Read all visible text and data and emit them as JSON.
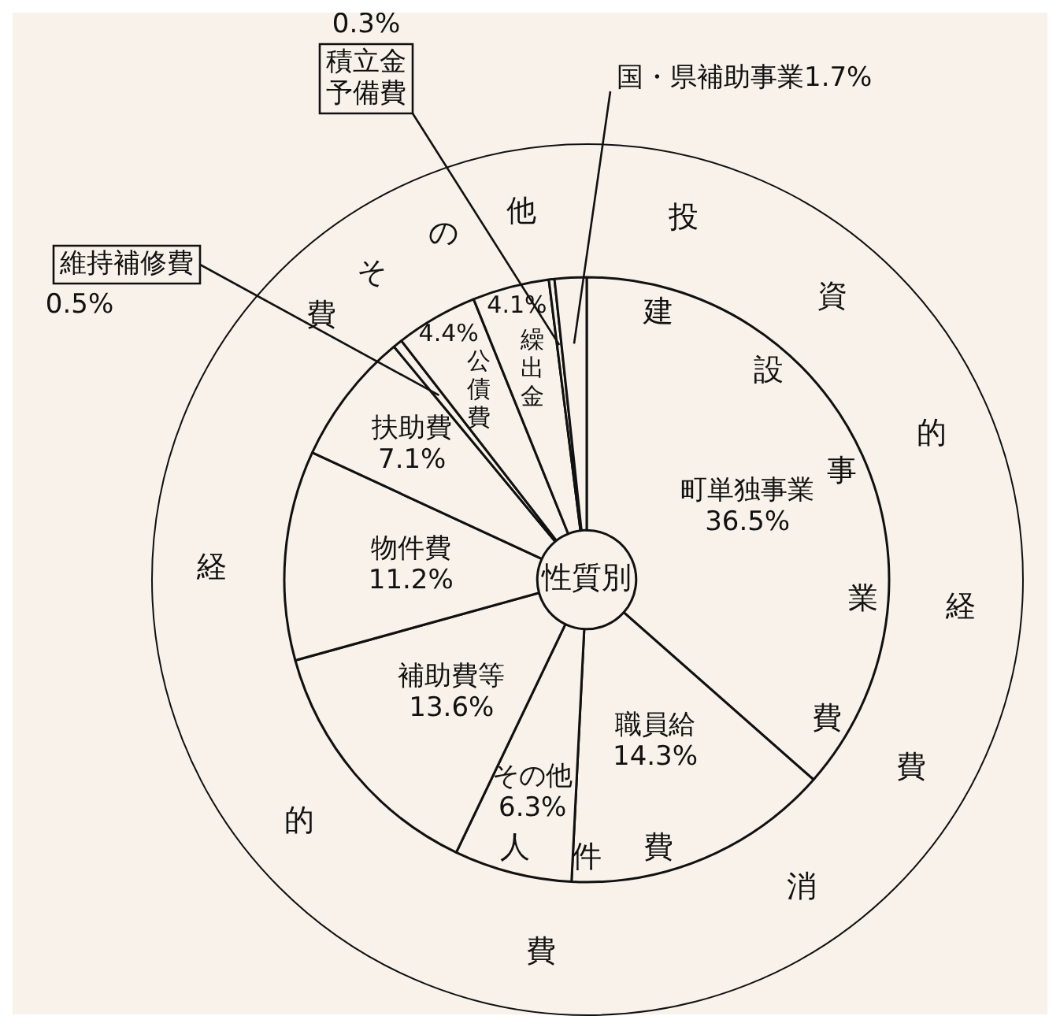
{
  "chart_data": {
    "type": "donut",
    "title": "性質別",
    "categories": [
      "町単独事業",
      "職員給",
      "その他",
      "補助費等",
      "物件費",
      "扶助費",
      "維持補修費",
      "公債費",
      "繰出金",
      "積立金予備費",
      "国・県補助事業"
    ],
    "values": [
      36.5,
      14.3,
      6.3,
      13.6,
      11.2,
      7.1,
      0.5,
      4.4,
      4.1,
      0.3,
      1.7
    ],
    "value_labels": [
      "36.5%",
      "14.3%",
      "6.3%",
      "13.6%",
      "11.2%",
      "7.1%",
      "0.5%",
      "4.4%",
      "4.1%",
      "0.3%",
      "1.7%"
    ],
    "colors": [
      "#f8f2ea",
      "#f8f2ea",
      "#f8f2ea",
      "#f8f2ea",
      "#f8f2ea",
      "#f8f2ea",
      "#f8f2ea",
      "#f8f2ea",
      "#f8f2ea",
      "#f8f2ea",
      "#f8f2ea"
    ],
    "legend": false,
    "annotations": [
      "投",
      "資",
      "的",
      "経",
      "費",
      "消",
      "費",
      "的",
      "経",
      "費",
      "その他",
      "建",
      "設",
      "事",
      "業",
      "費",
      "人件費"
    ]
  }
}
